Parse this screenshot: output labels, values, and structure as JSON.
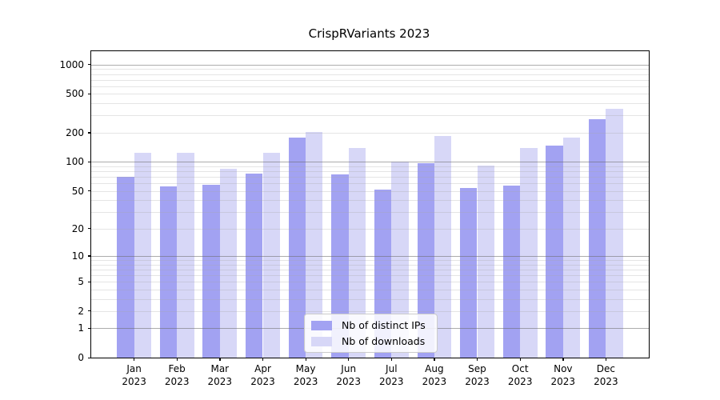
{
  "chart_data": {
    "type": "bar",
    "title": "CrispRVariants 2023",
    "categories": [
      "Jan 2023",
      "Feb 2023",
      "Mar 2023",
      "Apr 2023",
      "May 2023",
      "Jun 2023",
      "Jul 2023",
      "Aug 2023",
      "Sep 2023",
      "Oct 2023",
      "Nov 2023",
      "Dec 2023"
    ],
    "series": [
      {
        "name": "Nb of distinct IPs",
        "color": "#a2a2f2",
        "values": [
          70,
          56,
          58,
          75,
          177,
          74,
          52,
          97,
          54,
          57,
          147,
          277
        ]
      },
      {
        "name": "Nb of downloads",
        "color": "#d7d7f7",
        "values": [
          125,
          125,
          84,
          124,
          205,
          140,
          101,
          186,
          92,
          139,
          178,
          352
        ]
      }
    ],
    "xlabel": "",
    "ylabel": "",
    "y_scale": "log10(value+1)",
    "y_ticks": [
      0,
      1,
      2,
      5,
      10,
      20,
      50,
      100,
      200,
      500,
      1000
    ],
    "ylim": [
      0,
      1370
    ],
    "grid": "horizontal; darker lines at 1,10,100,1000; faint minor lines at 2-9 multiples; drawn over bars",
    "legend_position": "inside plot, lower center",
    "colors": {
      "distinct_ips_bar": "#a2a2f2",
      "downloads_bar": "#d7d7f7",
      "axis": "#000000",
      "grid_major": "#696969",
      "grid_minor": "#a5a5a5",
      "background": "#ffffff"
    }
  },
  "legend": {
    "items": [
      {
        "label": "Nb of distinct IPs",
        "color": "#a2a2f2"
      },
      {
        "label": "Nb of downloads",
        "color": "#d7d7f7"
      }
    ]
  }
}
